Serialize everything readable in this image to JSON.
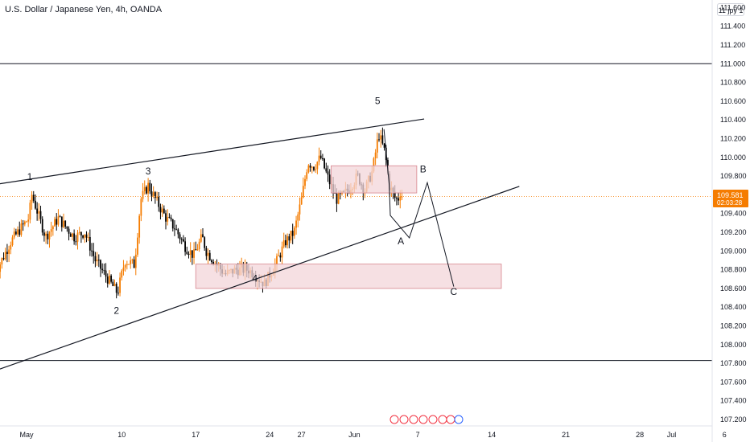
{
  "title": "U.S. Dollar / Japanese Yen, 4h, OANDA",
  "symbol_badge": "11 jpy 1",
  "price_tag": {
    "price": "109.581",
    "countdown": "02:03:28",
    "color": "#f57c00"
  },
  "colors": {
    "up": "#f57c00",
    "down": "#000000",
    "zone_fill": "#f3d6d9",
    "zone_stroke": "#d7848d"
  },
  "chart_data": {
    "type": "candlestick",
    "y_ticks": [
      "111.600",
      "111.400",
      "111.200",
      "111.000",
      "110.800",
      "110.600",
      "110.400",
      "110.200",
      "110.000",
      "109.800",
      "109.600",
      "109.400",
      "109.200",
      "109.000",
      "108.800",
      "108.600",
      "108.400",
      "108.200",
      "108.000",
      "107.800",
      "107.600",
      "107.400",
      "107.200"
    ],
    "ylim": [
      107.1,
      111.7
    ],
    "x_ticks": [
      {
        "label": "May",
        "day": 0
      },
      {
        "label": "10",
        "day": 9
      },
      {
        "label": "17",
        "day": 16
      },
      {
        "label": "24",
        "day": 23
      },
      {
        "label": "27",
        "day": 26
      },
      {
        "label": "Jun",
        "day": 31
      },
      {
        "label": "7",
        "day": 37
      },
      {
        "label": "14",
        "day": 44
      },
      {
        "label": "21",
        "day": 51
      },
      {
        "label": "28",
        "day": 58
      },
      {
        "label": "Jul",
        "day": 61
      },
      {
        "label": "6",
        "day": 66
      }
    ],
    "horizontal_levels": [
      111.0,
      107.83
    ],
    "trendlines": [
      {
        "from": {
          "day": -3.0,
          "price": 109.71
        },
        "to": {
          "day": 37.6,
          "price": 110.41
        }
      },
      {
        "from": {
          "day": -3.0,
          "price": 107.72
        },
        "to": {
          "day": 46.6,
          "price": 109.69
        }
      }
    ],
    "zones": [
      {
        "from_day": 28.8,
        "to_day": 36.9,
        "top": 109.91,
        "bottom": 109.62
      },
      {
        "from_day": 16.0,
        "to_day": 44.9,
        "top": 108.86,
        "bottom": 108.6
      }
    ],
    "projection": [
      {
        "day": 34.4,
        "price": 109.38
      },
      {
        "day": 36.2,
        "price": 109.14
      },
      {
        "day": 37.9,
        "price": 109.73
      },
      {
        "day": 40.4,
        "price": 108.62
      }
    ],
    "wave_labels": [
      {
        "text": "1",
        "day": 0.3,
        "price": 109.76
      },
      {
        "text": "2",
        "day": 8.5,
        "price": 108.33
      },
      {
        "text": "3",
        "day": 11.5,
        "price": 109.82
      },
      {
        "text": "4",
        "day": 21.6,
        "price": 108.67
      },
      {
        "text": "5",
        "day": 33.2,
        "price": 110.57
      },
      {
        "text": "A",
        "day": 35.4,
        "price": 109.07
      },
      {
        "text": "B",
        "day": 37.5,
        "price": 109.84
      },
      {
        "text": "C",
        "day": 40.4,
        "price": 108.53
      }
    ],
    "waypoints": [
      {
        "day": -3.0,
        "price": 108.75
      },
      {
        "day": -1.5,
        "price": 109.1
      },
      {
        "day": 0.2,
        "price": 109.35
      },
      {
        "day": 0.5,
        "price": 109.6
      },
      {
        "day": 1.8,
        "price": 109.15
      },
      {
        "day": 3.0,
        "price": 109.35
      },
      {
        "day": 4.5,
        "price": 109.15
      },
      {
        "day": 5.5,
        "price": 109.2
      },
      {
        "day": 6.5,
        "price": 108.9
      },
      {
        "day": 8.0,
        "price": 108.65
      },
      {
        "day": 8.6,
        "price": 108.55
      },
      {
        "day": 9.3,
        "price": 108.9
      },
      {
        "day": 10.2,
        "price": 108.85
      },
      {
        "day": 10.8,
        "price": 109.55
      },
      {
        "day": 11.5,
        "price": 109.7
      },
      {
        "day": 12.2,
        "price": 109.55
      },
      {
        "day": 13.2,
        "price": 109.35
      },
      {
        "day": 14.0,
        "price": 109.25
      },
      {
        "day": 15.0,
        "price": 109.05
      },
      {
        "day": 15.8,
        "price": 108.95
      },
      {
        "day": 16.6,
        "price": 109.15
      },
      {
        "day": 17.0,
        "price": 109.0
      },
      {
        "day": 18.0,
        "price": 108.85
      },
      {
        "day": 18.8,
        "price": 108.75
      },
      {
        "day": 19.8,
        "price": 108.8
      },
      {
        "day": 21.0,
        "price": 108.8
      },
      {
        "day": 22.5,
        "price": 108.65
      },
      {
        "day": 23.5,
        "price": 108.85
      },
      {
        "day": 24.5,
        "price": 109.1
      },
      {
        "day": 25.3,
        "price": 109.2
      },
      {
        "day": 26.0,
        "price": 109.55
      },
      {
        "day": 26.6,
        "price": 109.95
      },
      {
        "day": 27.2,
        "price": 109.9
      },
      {
        "day": 27.8,
        "price": 110.0
      },
      {
        "day": 28.6,
        "price": 109.75
      },
      {
        "day": 29.3,
        "price": 109.55
      },
      {
        "day": 30.0,
        "price": 109.6
      },
      {
        "day": 30.7,
        "price": 109.7
      },
      {
        "day": 31.3,
        "price": 109.8
      },
      {
        "day": 32.0,
        "price": 109.65
      },
      {
        "day": 32.7,
        "price": 109.85
      },
      {
        "day": 33.3,
        "price": 110.25
      },
      {
        "day": 33.9,
        "price": 110.05
      },
      {
        "day": 34.3,
        "price": 109.7
      },
      {
        "day": 34.9,
        "price": 109.55
      },
      {
        "day": 35.5,
        "price": 109.58
      }
    ],
    "last_price": 109.581
  }
}
